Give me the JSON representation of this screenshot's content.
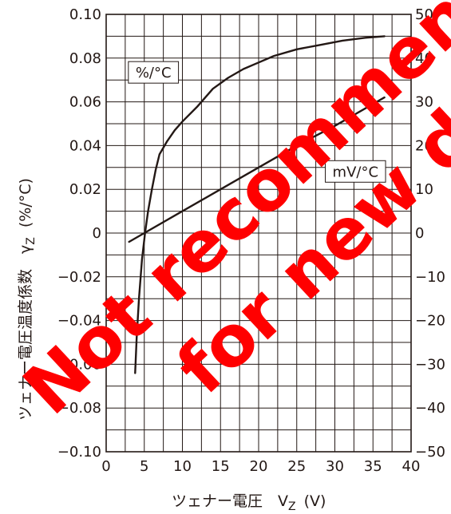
{
  "chart_data": {
    "type": "line",
    "xlabel": "ツェナー電圧　V",
    "xlabel_sub": "Z",
    "xlabel_unit": "(V)",
    "ylabel_left": "ツェナー電圧温度係数　γ",
    "ylabel_left_sub": "Z",
    "ylabel_left_unit": "(%/°C)",
    "xlim": [
      0,
      40
    ],
    "ylim_left": [
      -0.1,
      0.1
    ],
    "ylim_right": [
      -50,
      50
    ],
    "x_ticks": [
      "0",
      "5",
      "10",
      "15",
      "20",
      "25",
      "30",
      "35",
      "40"
    ],
    "y_ticks_left": [
      "0.10",
      "0.08",
      "0.06",
      "0.04",
      "0.02",
      "0",
      "−0.02",
      "−0.04",
      "−0.06",
      "−0.08",
      "−0.10"
    ],
    "y_ticks_right": [
      "50",
      "40",
      "30",
      "20",
      "10",
      "0",
      "−10",
      "−20",
      "−30",
      "−40",
      "−50"
    ],
    "grid": true,
    "series": [
      {
        "name": "%/°C",
        "axis": "left",
        "x": [
          3.8,
          4.0,
          4.3,
          4.7,
          5.1,
          5.5,
          6.0,
          6.5,
          7.0,
          8.0,
          9.0,
          10.0,
          12.0,
          14.0,
          16.0,
          18.0,
          20.0,
          22.0,
          25.0,
          28.0,
          31.0,
          34.0,
          36.5
        ],
        "y": [
          -0.064,
          -0.048,
          -0.03,
          -0.012,
          0.0,
          0.01,
          0.02,
          0.029,
          0.036,
          0.042,
          0.047,
          0.051,
          0.058,
          0.066,
          0.071,
          0.075,
          0.078,
          0.081,
          0.084,
          0.086,
          0.088,
          0.0893,
          0.09
        ]
      },
      {
        "name": "mV/°C",
        "axis": "right",
        "x": [
          3.0,
          5.0,
          10.0,
          15.0,
          20.0,
          25.0,
          30.0,
          36.5
        ],
        "y": [
          -2.0,
          0.0,
          5.0,
          10.0,
          15.0,
          20.0,
          24.5,
          31.0
        ]
      }
    ],
    "legend": "inline-callouts"
  },
  "watermark": {
    "line1": "Not recommended",
    "line2": "for new design",
    "color": "#ff0000"
  }
}
